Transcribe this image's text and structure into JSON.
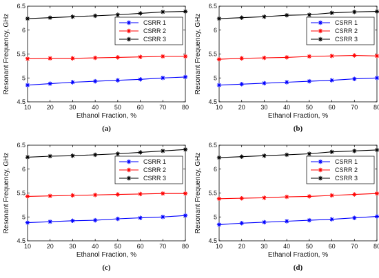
{
  "chart_data": [
    {
      "type": "line",
      "panel_label": "(a)",
      "xlabel": "Ethanol Fraction, %",
      "ylabel": "Resonant Frequency, GHz",
      "x": [
        10,
        20,
        30,
        40,
        50,
        60,
        70,
        80
      ],
      "xlim": [
        10,
        80
      ],
      "ylim": [
        4.5,
        6.5
      ],
      "xticks": [
        "10",
        "20",
        "30",
        "40",
        "50",
        "60",
        "70",
        "80"
      ],
      "yticks": [
        "4.5",
        "5",
        "5.5",
        "6",
        "6.5"
      ],
      "grid": false,
      "legend_position": "center-right",
      "series": [
        {
          "name": "CSRR 1",
          "color": "#0000ff",
          "values": [
            4.85,
            4.88,
            4.91,
            4.93,
            4.95,
            4.97,
            5.0,
            5.02
          ]
        },
        {
          "name": "CSRR 2",
          "color": "#ff0000",
          "values": [
            5.4,
            5.41,
            5.41,
            5.42,
            5.43,
            5.44,
            5.45,
            5.45
          ]
        },
        {
          "name": "CSRR 3",
          "color": "#000000",
          "values": [
            6.24,
            6.26,
            6.28,
            6.3,
            6.32,
            6.35,
            6.38,
            6.39
          ]
        }
      ]
    },
    {
      "type": "line",
      "panel_label": "(b)",
      "xlabel": "Ethanol Fraction, %",
      "ylabel": "Resonant Frequency, GHz",
      "x": [
        10,
        20,
        30,
        40,
        50,
        60,
        70,
        80
      ],
      "xlim": [
        10,
        80
      ],
      "ylim": [
        4.5,
        6.5
      ],
      "xticks": [
        "10",
        "20",
        "30",
        "40",
        "50",
        "60",
        "70",
        "80"
      ],
      "yticks": [
        "4.5",
        "5",
        "5.5",
        "6",
        "6.5"
      ],
      "grid": false,
      "legend_position": "center-right",
      "series": [
        {
          "name": "CSRR 1",
          "color": "#0000ff",
          "values": [
            4.85,
            4.87,
            4.89,
            4.91,
            4.93,
            4.95,
            4.98,
            5.0
          ]
        },
        {
          "name": "CSRR 2",
          "color": "#ff0000",
          "values": [
            5.39,
            5.41,
            5.42,
            5.43,
            5.45,
            5.46,
            5.47,
            5.46
          ]
        },
        {
          "name": "CSRR 3",
          "color": "#000000",
          "values": [
            6.24,
            6.26,
            6.28,
            6.31,
            6.32,
            6.36,
            6.38,
            6.39
          ]
        }
      ]
    },
    {
      "type": "line",
      "panel_label": "(c)",
      "xlabel": "Ethanol Fraction, %",
      "ylabel": "Resonant Frequency, GHz",
      "x": [
        10,
        20,
        30,
        40,
        50,
        60,
        70,
        80
      ],
      "xlim": [
        10,
        80
      ],
      "ylim": [
        4.5,
        6.5
      ],
      "xticks": [
        "10",
        "20",
        "30",
        "40",
        "50",
        "60",
        "70",
        "80"
      ],
      "yticks": [
        "4.5",
        "5",
        "5.5",
        "6",
        "6.5"
      ],
      "grid": false,
      "legend_position": "center-right",
      "series": [
        {
          "name": "CSRR 1",
          "color": "#0000ff",
          "values": [
            4.88,
            4.9,
            4.92,
            4.93,
            4.96,
            4.98,
            5.0,
            5.03
          ]
        },
        {
          "name": "CSRR 2",
          "color": "#ff0000",
          "values": [
            5.43,
            5.44,
            5.45,
            5.46,
            5.47,
            5.48,
            5.49,
            5.49
          ]
        },
        {
          "name": "CSRR 3",
          "color": "#000000",
          "values": [
            6.25,
            6.27,
            6.28,
            6.3,
            6.32,
            6.35,
            6.38,
            6.41
          ]
        }
      ]
    },
    {
      "type": "line",
      "panel_label": "(d)",
      "xlabel": "Ethanol Fraction, %",
      "ylabel": "Resonant Frequency, GHz",
      "x": [
        10,
        20,
        30,
        40,
        50,
        60,
        70,
        80
      ],
      "xlim": [
        10,
        80
      ],
      "ylim": [
        4.5,
        6.5
      ],
      "xticks": [
        "10",
        "20",
        "30",
        "40",
        "50",
        "60",
        "70",
        "80"
      ],
      "yticks": [
        "4.5",
        "5",
        "5.5",
        "6",
        "6.5"
      ],
      "grid": false,
      "legend_position": "center-right",
      "series": [
        {
          "name": "CSRR 1",
          "color": "#0000ff",
          "values": [
            4.84,
            4.87,
            4.89,
            4.91,
            4.93,
            4.95,
            4.98,
            5.01
          ]
        },
        {
          "name": "CSRR 2",
          "color": "#ff0000",
          "values": [
            5.38,
            5.39,
            5.4,
            5.42,
            5.43,
            5.45,
            5.47,
            5.49
          ]
        },
        {
          "name": "CSRR 3",
          "color": "#000000",
          "values": [
            6.24,
            6.26,
            6.28,
            6.3,
            6.32,
            6.36,
            6.38,
            6.4
          ]
        }
      ]
    }
  ]
}
